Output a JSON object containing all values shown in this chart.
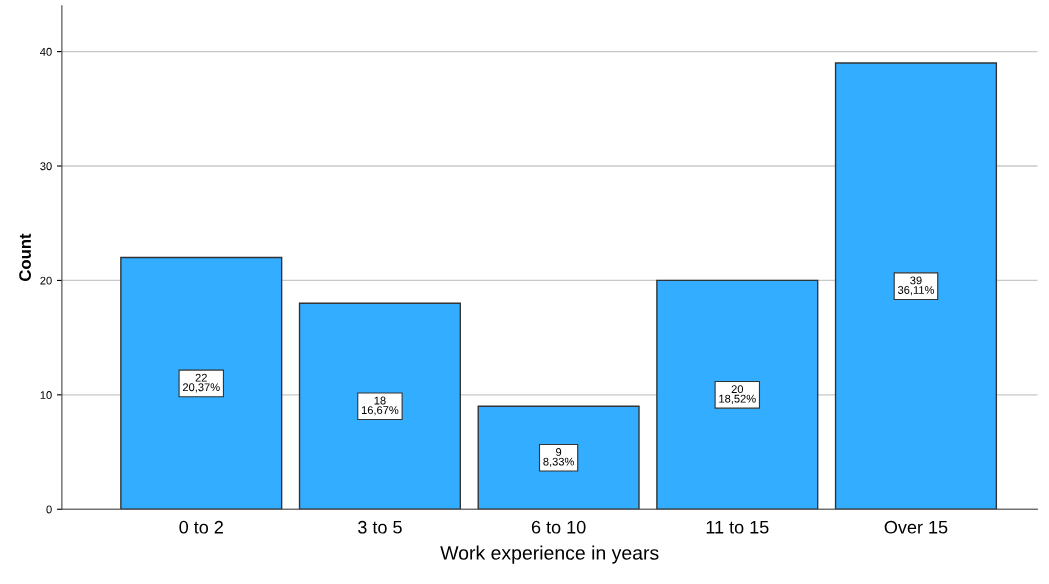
{
  "chart_data": {
    "type": "bar",
    "xlabel": "Work experience in years",
    "ylabel": "Count",
    "categories": [
      "0 to 2",
      "3 to 5",
      "6 to 10",
      "11 to 15",
      "Over 15"
    ],
    "values": [
      22,
      18,
      9,
      20,
      39
    ],
    "value_labels": [
      "22\n20,37%",
      "18\n16,67%",
      "9\n8,33%",
      "20\n18,52%",
      "39\n36,11%"
    ],
    "color": "#33adff",
    "ylim": [
      0,
      44
    ],
    "yticks": [
      0,
      10,
      20,
      30,
      40
    ],
    "grid": "y",
    "legend": false
  }
}
